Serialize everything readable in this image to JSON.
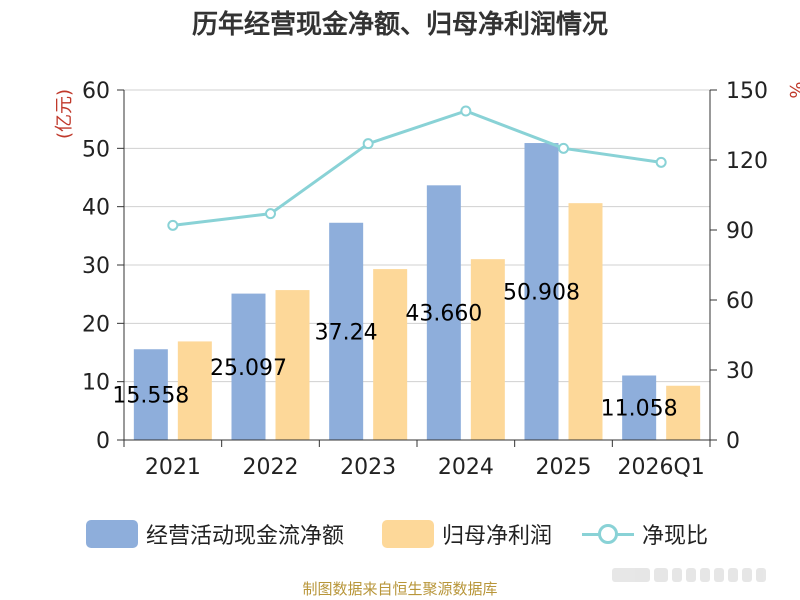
{
  "colors": {
    "cash_flow": "#8eaedb",
    "net_profit": "#fdd899",
    "ratio": "#89d2d6",
    "axis_unit": "#c0392b"
  },
  "chart_data": {
    "type": "bar",
    "title": "历年经营现金净额、归母净利润情况",
    "categories": [
      "2021",
      "2022",
      "2023",
      "2024",
      "2025",
      "2026Q1"
    ],
    "left_axis": {
      "unit": "(亿元)",
      "ylim": [
        0,
        60
      ],
      "ticks": [
        "0",
        "10",
        "20",
        "30",
        "40",
        "50",
        "60"
      ]
    },
    "right_axis": {
      "unit": "%",
      "ylim": [
        0,
        150
      ],
      "ticks": [
        "0",
        "30",
        "60",
        "90",
        "120",
        "150"
      ]
    },
    "series": [
      {
        "name": "经营活动现金流净额",
        "type": "bar",
        "axis": "left",
        "values": [
          15.558,
          25.097,
          37.24,
          43.66,
          50.908,
          11.058
        ],
        "data_labels": [
          "15.558",
          "25.097",
          "37.24",
          "43.660",
          "50.908",
          "11.058"
        ]
      },
      {
        "name": "归母净利润",
        "type": "bar",
        "axis": "left",
        "values": [
          16.9,
          25.7,
          29.3,
          31.0,
          40.6,
          9.3
        ]
      },
      {
        "name": "净现比",
        "type": "line",
        "axis": "right",
        "values": [
          92,
          97,
          127,
          141,
          125,
          119
        ]
      }
    ],
    "grid": true,
    "legend_position": "bottom"
  },
  "source_note": "制图数据来自恒生聚源数据库"
}
